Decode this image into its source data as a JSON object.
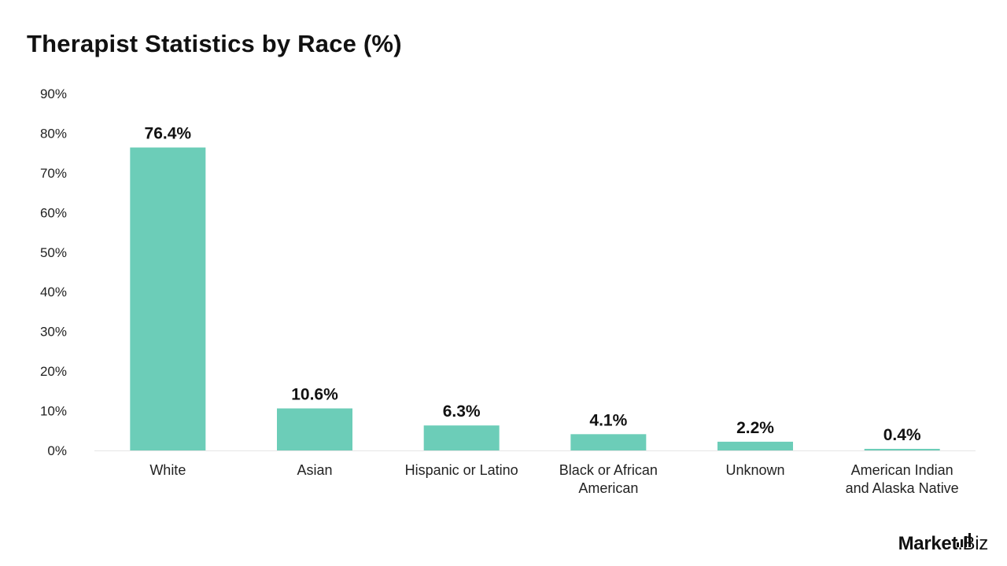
{
  "title": "Therapist Statistics by Race (%)",
  "brand": {
    "name_bold": "Market",
    "name_rest": ".Biz",
    "color": "#111111"
  },
  "colors": {
    "bar": "#6ccdb8",
    "axis": "#e6e6e6"
  },
  "chart_data": {
    "type": "bar",
    "title": "Therapist Statistics by Race (%)",
    "xlabel": "",
    "ylabel": "",
    "ylim": [
      0,
      90
    ],
    "yticks": [
      0,
      10,
      20,
      30,
      40,
      50,
      60,
      70,
      80,
      90
    ],
    "ytick_labels": [
      "0%",
      "10%",
      "20%",
      "30%",
      "40%",
      "50%",
      "60%",
      "70%",
      "80%",
      "90%"
    ],
    "grid": false,
    "legend": "none",
    "categories": [
      [
        "White"
      ],
      [
        "Asian"
      ],
      [
        "Hispanic or Latino"
      ],
      [
        "Black or African",
        "American"
      ],
      [
        "Unknown"
      ],
      [
        "American Indian",
        "and Alaska Native"
      ]
    ],
    "values": [
      76.4,
      10.6,
      6.3,
      4.1,
      2.2,
      0.4
    ],
    "data_labels": [
      "76.4%",
      "10.6%",
      "6.3%",
      "4.1%",
      "2.2%",
      "0.4%"
    ]
  }
}
